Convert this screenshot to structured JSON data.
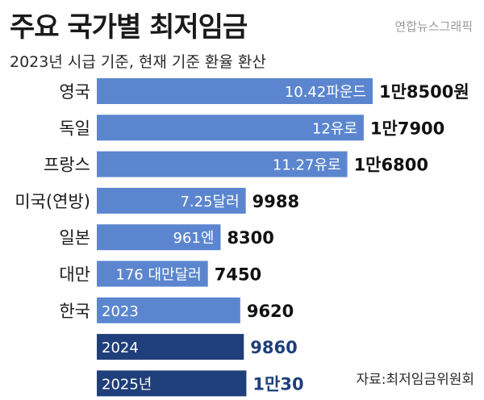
{
  "header": {
    "title": "주요 국가별 최저임금",
    "subtitle": "2023년 시급 기준, 현재 기준 환율 환산",
    "credit": "연합뉴스그래픽",
    "source": "자료:최저임금위원회"
  },
  "colors": {
    "bar_light": "#5b86cf",
    "bar_dark": "#1f3f7a",
    "text_dark": "#111111",
    "text_blue": "#1f3f7a"
  },
  "chart_data": {
    "type": "bar",
    "orientation": "horizontal",
    "unit": "원",
    "categories": [
      "영국",
      "독일",
      "프랑스",
      "미국(연방)",
      "일본",
      "대만",
      "한국",
      "",
      ""
    ],
    "bar_labels": [
      "10.42파운드",
      "12유로",
      "11.27유로",
      "7.25달러",
      "961엔",
      "176 대만달러",
      "2023",
      "2024",
      "2025년"
    ],
    "value_labels": [
      "1만8500원",
      "1만7900",
      "1만6800",
      "9988",
      "8300",
      "7450",
      "9620",
      "9860",
      "1만30"
    ],
    "values": [
      18500,
      17900,
      16800,
      9988,
      8300,
      7450,
      9620,
      9860,
      10030
    ],
    "highlight": [
      false,
      false,
      false,
      false,
      false,
      false,
      false,
      true,
      true
    ],
    "xlim": [
      0,
      18500
    ]
  }
}
